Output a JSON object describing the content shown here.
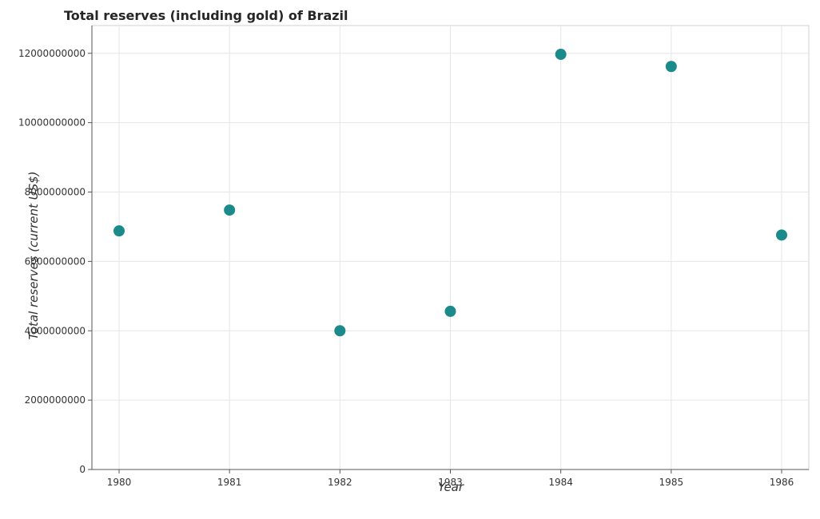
{
  "chart_data": {
    "type": "scatter",
    "title": "Total reserves (including gold) of Brazil",
    "xlabel": "Year",
    "ylabel": "Total reserves (current US$)",
    "x": [
      "1980",
      "1981",
      "1982",
      "1983",
      "1984",
      "1985",
      "1986"
    ],
    "series": [
      {
        "values": [
          6880000000,
          7480000000,
          4000000000,
          4560000000,
          11970000000,
          11620000000,
          6760000000
        ]
      }
    ],
    "yticks": [
      "0",
      "2000000000",
      "4000000000",
      "6000000000",
      "8000000000",
      "10000000000",
      "12000000000"
    ],
    "ylim": [
      0,
      12800000000
    ],
    "grid": true,
    "point_color": "#1a8a8a"
  }
}
